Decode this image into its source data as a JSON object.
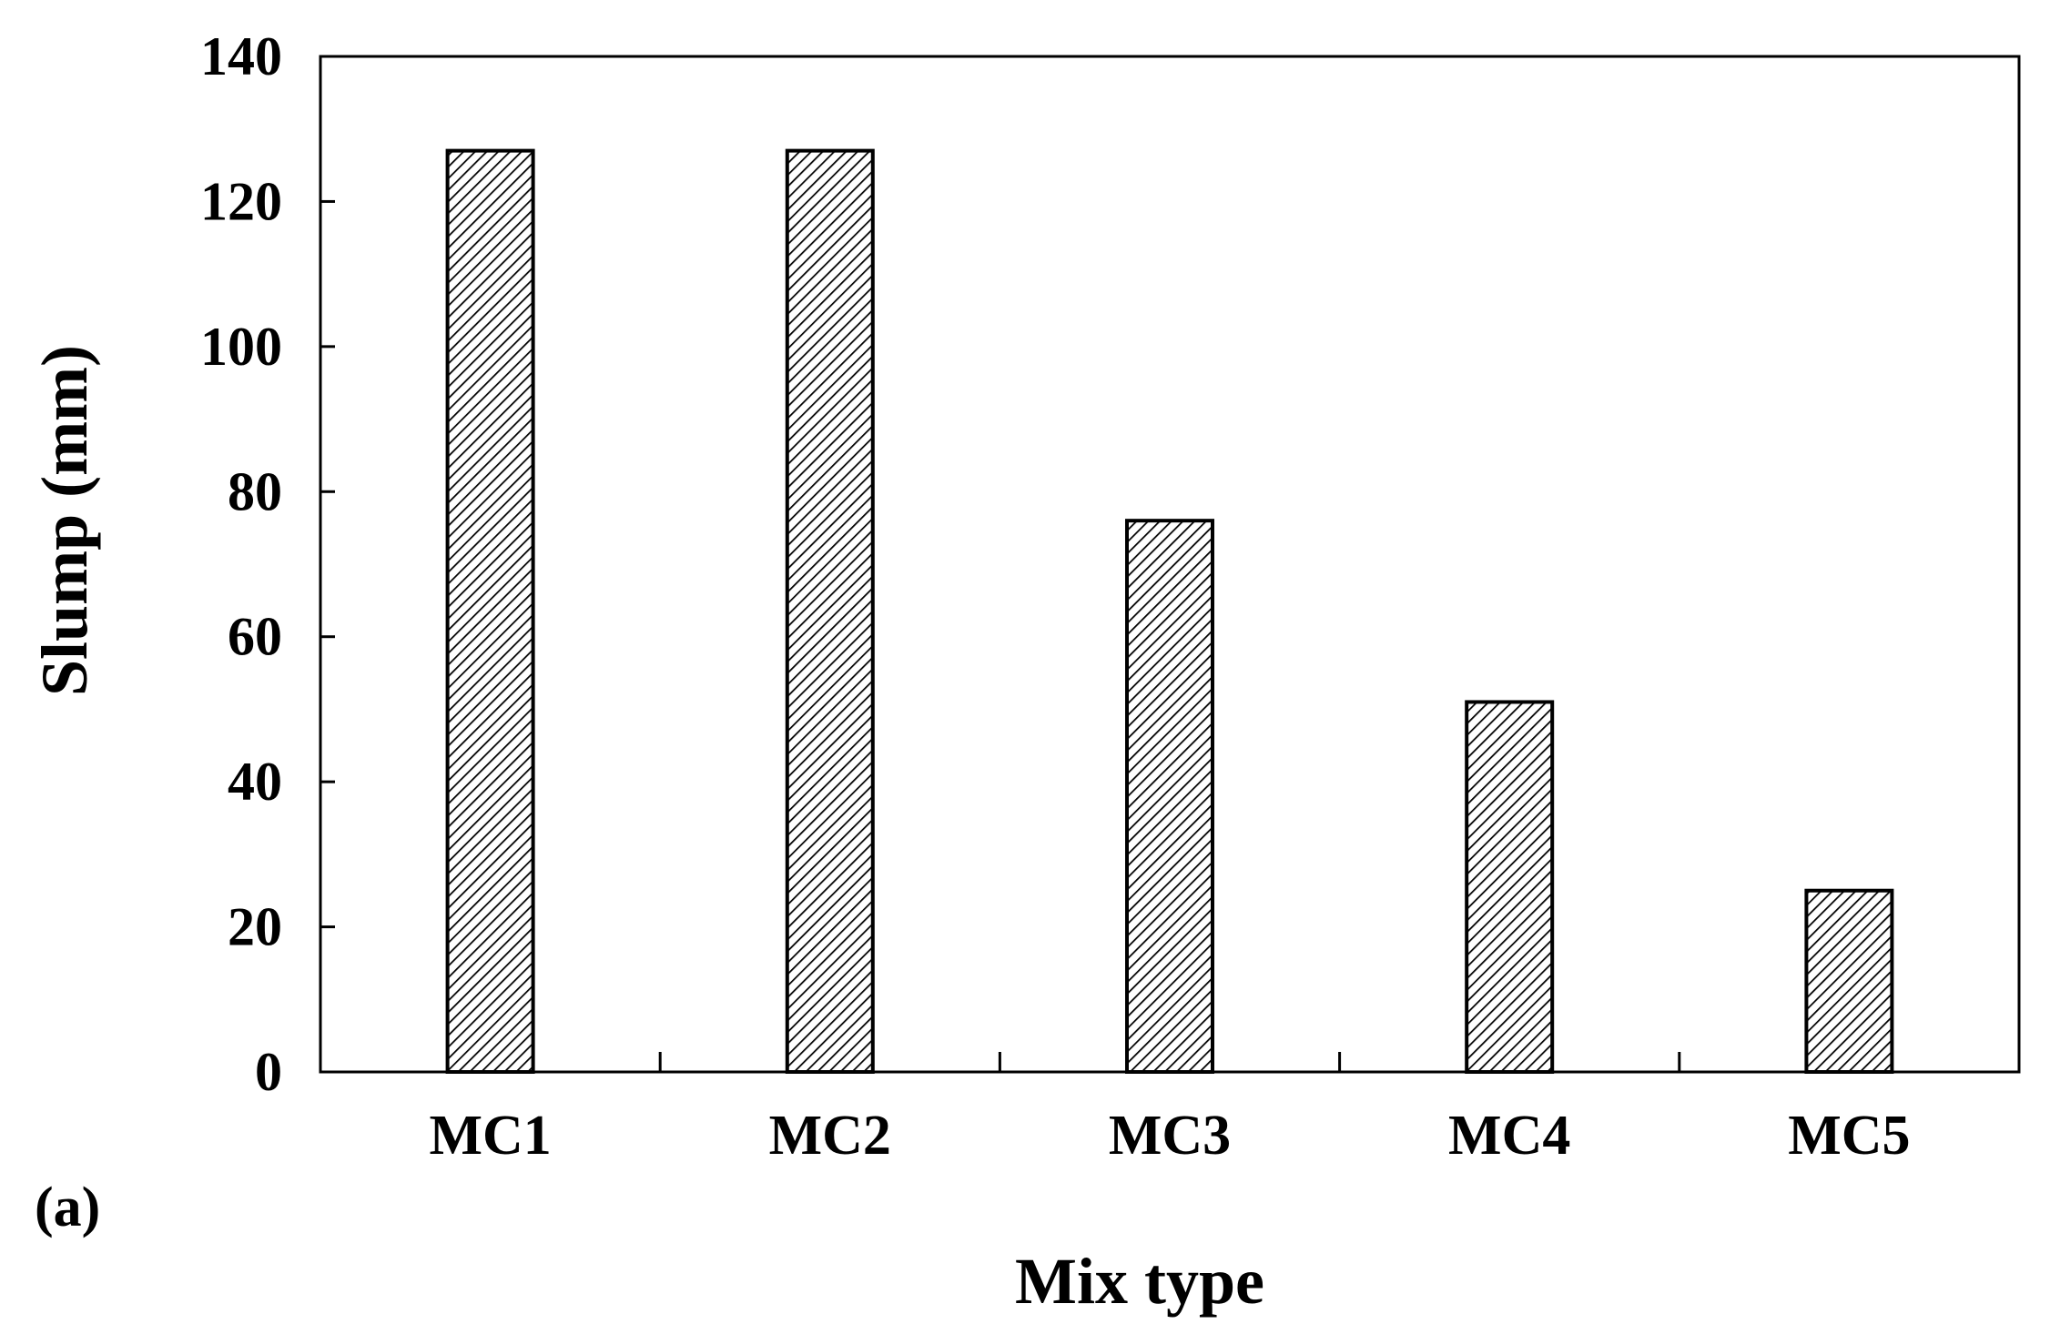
{
  "panel_label": "(a)",
  "chart_data": {
    "type": "bar",
    "categories": [
      "MC1",
      "MC2",
      "MC3",
      "MC4",
      "MC5"
    ],
    "values": [
      127,
      127,
      76,
      51,
      25
    ],
    "xlabel": "Mix type",
    "ylabel": "Slump (mm)",
    "ylim": [
      0,
      140
    ],
    "yticks": [
      0,
      20,
      40,
      60,
      80,
      100,
      120,
      140
    ],
    "grid": false,
    "legend": "none",
    "bar_fill": "diagonal hatch",
    "colors": {
      "bar_stroke": "#000000",
      "hatch": "#000000",
      "background": "#ffffff"
    }
  }
}
